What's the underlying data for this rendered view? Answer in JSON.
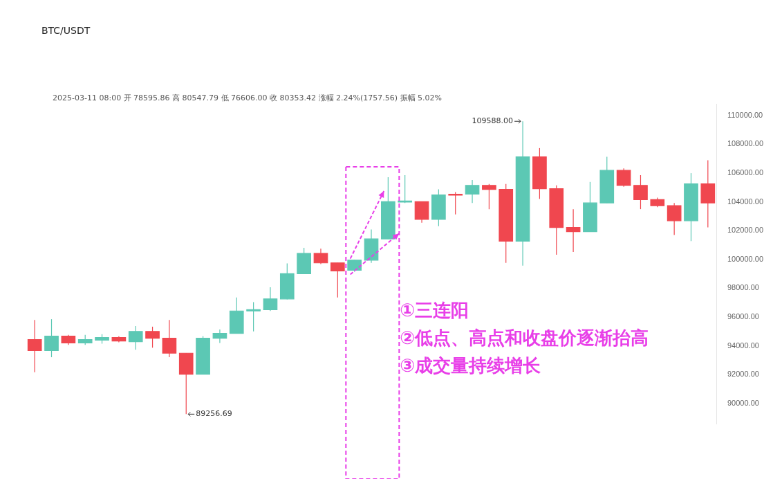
{
  "chart_data": {
    "type": "candlestick",
    "title": "BTC/USDT",
    "subtitle": "2025-03-11 08:00 开 78595.86 高 80547.79 低 76606.00 收 80353.42 涨幅 2.24%(1757.56) 振幅 5.02%",
    "categories": [
      null,
      null,
      null,
      null,
      null,
      null,
      null,
      null,
      null,
      null,
      null,
      null,
      null,
      null,
      null,
      null,
      null,
      null,
      null,
      null,
      null,
      null,
      null,
      null,
      null,
      null,
      null,
      null,
      null,
      null,
      null,
      null,
      null,
      null,
      null,
      null,
      null,
      null,
      null,
      null,
      null
    ],
    "ohlc": [
      [
        94430,
        95800,
        92170,
        93680
      ],
      [
        93680,
        95850,
        93210,
        94670
      ],
      [
        94670,
        94760,
        94060,
        94200
      ],
      [
        94200,
        94760,
        94060,
        94430
      ],
      [
        94390,
        94810,
        94150,
        94580
      ],
      [
        94580,
        94670,
        94250,
        94340
      ],
      [
        94290,
        95380,
        93730,
        95000
      ],
      [
        95000,
        95330,
        93870,
        94530
      ],
      [
        94530,
        95800,
        93210,
        93490
      ],
      [
        93490,
        93490,
        89256.69,
        92030
      ],
      [
        92030,
        94670,
        92030,
        94530
      ],
      [
        94530,
        95140,
        94200,
        94860
      ],
      [
        94860,
        97360,
        94860,
        96420
      ],
      [
        96420,
        97030,
        95000,
        96510
      ],
      [
        96510,
        98070,
        96420,
        97260
      ],
      [
        97260,
        99720,
        97220,
        99010
      ],
      [
        99010,
        100800,
        99010,
        100420
      ],
      [
        100420,
        100750,
        99670,
        99760
      ],
      [
        99760,
        99760,
        97360,
        99200
      ],
      [
        99250,
        99960,
        99150,
        99950
      ],
      [
        99950,
        102080,
        99760,
        101420
      ],
      [
        101420,
        105710,
        101420,
        104010
      ],
      [
        104000,
        105850,
        103920,
        104050
      ],
      [
        104010,
        104010,
        102550,
        102780
      ],
      [
        102780,
        104860,
        102310,
        104480
      ],
      [
        104530,
        104670,
        103120,
        104480
      ],
      [
        104530,
        105520,
        103920,
        105140
      ],
      [
        105140,
        105240,
        103490,
        104860
      ],
      [
        104860,
        105240,
        99760,
        101270
      ],
      [
        101270,
        109588,
        99570,
        107120
      ],
      [
        107120,
        107730,
        104200,
        104910
      ],
      [
        104910,
        105140,
        100330,
        102220
      ],
      [
        102220,
        103490,
        100520,
        101930
      ],
      [
        101930,
        105380,
        101930,
        103920
      ],
      [
        103920,
        107120,
        103920,
        106180
      ],
      [
        106180,
        106320,
        105050,
        105140
      ],
      [
        105140,
        105850,
        103490,
        104150
      ],
      [
        104150,
        104290,
        103630,
        103730
      ],
      [
        103730,
        103920,
        101700,
        102690
      ],
      [
        102690,
        105990,
        101270,
        105240
      ],
      [
        105240,
        106880,
        102220,
        103920
      ]
    ],
    "colors": [
      "#f0474f",
      "#5cc8b4",
      "#f0474f",
      "#5cc8b4",
      "#5cc8b4",
      "#f0474f",
      "#5cc8b4",
      "#f0474f",
      "#f0474f",
      "#f0474f",
      "#5cc8b4",
      "#5cc8b4",
      "#5cc8b4",
      "#5cc8b4",
      "#5cc8b4",
      "#5cc8b4",
      "#5cc8b4",
      "#f0474f",
      "#f0474f",
      "#5cc8b4",
      "#5cc8b4",
      "#5cc8b4",
      "#5cc8b4",
      "#f0474f",
      "#5cc8b4",
      "#f0474f",
      "#5cc8b4",
      "#f0474f",
      "#f0474f",
      "#5cc8b4",
      "#f0474f",
      "#f0474f",
      "#f0474f",
      "#5cc8b4",
      "#5cc8b4",
      "#f0474f",
      "#f0474f",
      "#f0474f",
      "#f0474f",
      "#5cc8b4",
      "#f0474f"
    ],
    "ylim": [
      88600,
      110800
    ],
    "yticks": [
      {
        "value": 90000,
        "label": "90000.00"
      },
      {
        "value": 92000,
        "label": "92000.00"
      },
      {
        "value": 94000,
        "label": "94000.00"
      },
      {
        "value": 96000,
        "label": "96000.00"
      },
      {
        "value": 98000,
        "label": "98000.00"
      },
      {
        "value": 100000,
        "label": "100000.00"
      },
      {
        "value": 102000,
        "label": "102000.00"
      },
      {
        "value": 104000,
        "label": "104000.00"
      },
      {
        "value": 106000,
        "label": "106000.00"
      },
      {
        "value": 108000,
        "label": "108000.00"
      },
      {
        "value": 110000,
        "label": "110000.00"
      }
    ],
    "annotations": [
      "109588.00",
      "89256.69",
      "①三连阳",
      "②低点、高点和收盘价逐渐抬高",
      "③成交量持续增长"
    ]
  }
}
